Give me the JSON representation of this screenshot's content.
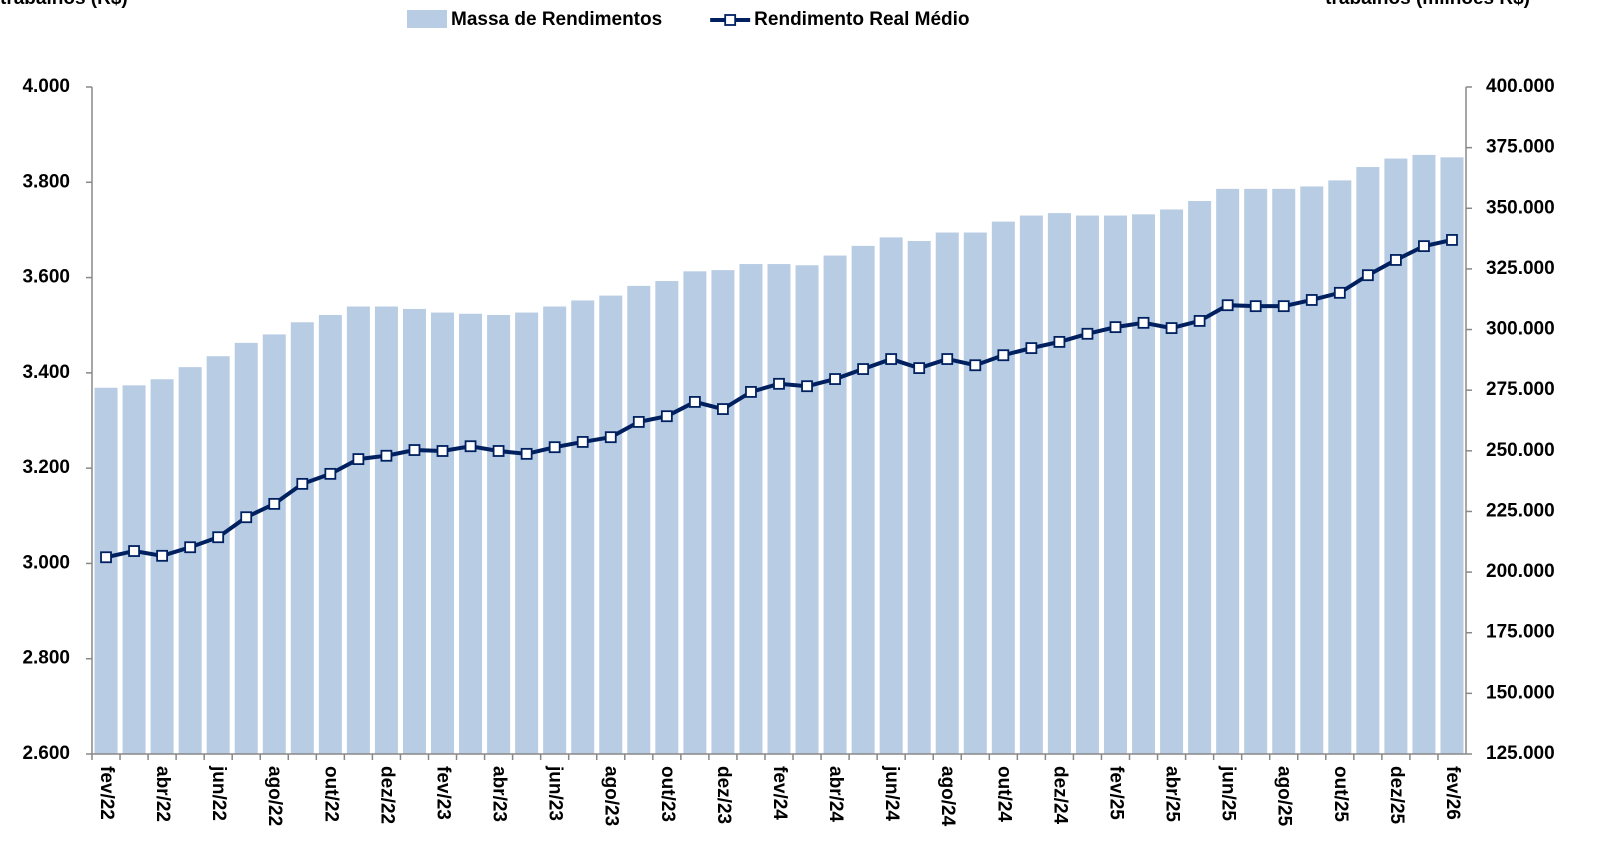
{
  "chart_data": {
    "type": "bar-line",
    "y_axis_label": "trabalhos (R$)",
    "y2_axis_label": "trabalhos (milhões R$)",
    "categories": [
      "fev/22",
      null,
      "abr/22",
      null,
      "jun/22",
      null,
      "ago/22",
      null,
      "out/22",
      null,
      "dez/22",
      null,
      "fev/23",
      null,
      "abr/23",
      null,
      "jun/23",
      null,
      "ago/23",
      null,
      "out/23",
      null,
      "dez/23",
      null,
      "fev/24",
      null,
      "abr/24",
      null,
      "jun/24",
      null,
      "ago/24",
      null,
      "out/24",
      null,
      "dez/24",
      null,
      "fev/25",
      null,
      "abr/25",
      null,
      "jun/25",
      null,
      "ago/25",
      null,
      "out/25",
      null,
      "dez/25",
      null,
      "fev/26"
    ],
    "series": [
      {
        "name": "Massa de Rendimentos",
        "type": "bar",
        "axis": "y2",
        "color": "#b8cce4",
        "values": [
          276000,
          277000,
          279500,
          284500,
          289000,
          294500,
          298000,
          303000,
          306000,
          309500,
          309500,
          308500,
          307000,
          306500,
          306000,
          307000,
          309500,
          312000,
          314000,
          318000,
          320000,
          324000,
          324500,
          327000,
          327000,
          326500,
          330500,
          334500,
          338000,
          336500,
          340000,
          340000,
          344500,
          347000,
          348000,
          347000,
          347000,
          347500,
          349500,
          353000,
          358000,
          358000,
          358000,
          359000,
          361500,
          367000,
          370500,
          372000,
          371000
        ]
      },
      {
        "name": "Rendimento Real Médio",
        "type": "line",
        "axis": "y",
        "color": "#002060",
        "values": [
          3013,
          3026,
          3016,
          3034,
          3055,
          3097,
          3125,
          3167,
          3188,
          3219,
          3226,
          3238,
          3236,
          3246,
          3236,
          3230,
          3244,
          3255,
          3265,
          3297,
          3309,
          3339,
          3324,
          3360,
          3377,
          3372,
          3387,
          3408,
          3429,
          3410,
          3429,
          3416,
          3437,
          3452,
          3465,
          3482,
          3496,
          3505,
          3494,
          3509,
          3542,
          3540,
          3540,
          3553,
          3568,
          3605,
          3637,
          3666,
          3679
        ]
      }
    ],
    "ylim": [
      2600,
      4000
    ],
    "yticks": [
      {
        "value": 2600,
        "label": "2.600"
      },
      {
        "value": 2800,
        "label": "2.800"
      },
      {
        "value": 3000,
        "label": "3.000"
      },
      {
        "value": 3200,
        "label": "3.200"
      },
      {
        "value": 3400,
        "label": "3.400"
      },
      {
        "value": 3600,
        "label": "3.600"
      },
      {
        "value": 3800,
        "label": "3.800"
      },
      {
        "value": 4000,
        "label": "4.000"
      }
    ],
    "y2lim": [
      125000,
      400000
    ],
    "y2ticks": [
      {
        "value": 125000,
        "label": "125.000"
      },
      {
        "value": 150000,
        "label": "150.000"
      },
      {
        "value": 175000,
        "label": "175.000"
      },
      {
        "value": 200000,
        "label": "200.000"
      },
      {
        "value": 225000,
        "label": "225.000"
      },
      {
        "value": 250000,
        "label": "250.000"
      },
      {
        "value": 275000,
        "label": "275.000"
      },
      {
        "value": 300000,
        "label": "300.000"
      },
      {
        "value": 325000,
        "label": "325.000"
      },
      {
        "value": 350000,
        "label": "350.000"
      },
      {
        "value": 375000,
        "label": "375.000"
      },
      {
        "value": 400000,
        "label": "400.000"
      }
    ],
    "grid": false
  }
}
